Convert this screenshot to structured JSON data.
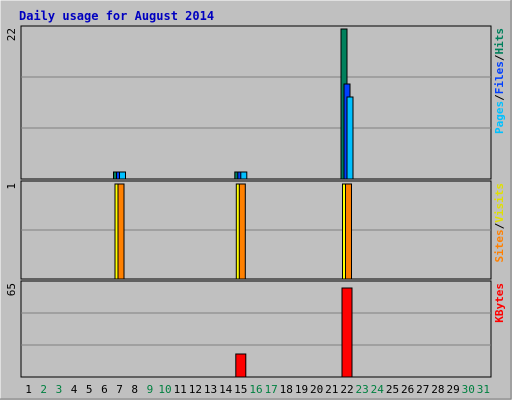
{
  "colors": {
    "frame_bg": "#c0c0c0",
    "plot_bg": "#c0c0c0",
    "grid": "#808080",
    "title": "#0000c0",
    "hits": "#00805c",
    "files": "#0040ff",
    "pages": "#00c0ff",
    "visits": "#ffff00",
    "sites": "#ff8000",
    "kbytes": "#ff0000",
    "weekday": "#000000",
    "weekend": "#008040"
  },
  "chart_data": {
    "type": "bar",
    "title": "Daily usage for August 2014",
    "days": [
      "1",
      "2",
      "3",
      "4",
      "5",
      "6",
      "7",
      "8",
      "9",
      "10",
      "11",
      "12",
      "13",
      "14",
      "15",
      "16",
      "17",
      "18",
      "19",
      "20",
      "21",
      "22",
      "23",
      "24",
      "25",
      "26",
      "27",
      "28",
      "29",
      "30",
      "31"
    ],
    "weekend_days": [
      2,
      3,
      9,
      10,
      16,
      17,
      23,
      24,
      30,
      31
    ],
    "panels": [
      {
        "scale_label": "22",
        "ymax": 22,
        "legend": [
          {
            "label": "Pages",
            "color": "#00c0ff"
          },
          {
            "label": "/",
            "color": "#000000"
          },
          {
            "label": "Files",
            "color": "#0040ff"
          },
          {
            "label": "/",
            "color": "#000000"
          },
          {
            "label": "Hits",
            "color": "#00805c"
          }
        ],
        "series": [
          {
            "name": "Hits",
            "color": "#00805c",
            "values": [
              0,
              0,
              0,
              0,
              0,
              0,
              1,
              0,
              0,
              0,
              0,
              0,
              0,
              0,
              1,
              0,
              0,
              0,
              0,
              0,
              0,
              22,
              0,
              0,
              0,
              0,
              0,
              0,
              0,
              0,
              0
            ]
          },
          {
            "name": "Files",
            "color": "#0040ff",
            "values": [
              0,
              0,
              0,
              0,
              0,
              0,
              1,
              0,
              0,
              0,
              0,
              0,
              0,
              0,
              1,
              0,
              0,
              0,
              0,
              0,
              0,
              14,
              0,
              0,
              0,
              0,
              0,
              0,
              0,
              0,
              0
            ]
          },
          {
            "name": "Pages",
            "color": "#00c0ff",
            "values": [
              0,
              0,
              0,
              0,
              0,
              0,
              1,
              0,
              0,
              0,
              0,
              0,
              0,
              0,
              1,
              0,
              0,
              0,
              0,
              0,
              0,
              12,
              0,
              0,
              0,
              0,
              0,
              0,
              0,
              0,
              0
            ]
          }
        ]
      },
      {
        "scale_label": "1",
        "ymax": 1,
        "legend": [
          {
            "label": "Sites",
            "color": "#ff8000"
          },
          {
            "label": "/",
            "color": "#000000"
          },
          {
            "label": "Visits",
            "color": "#e0e000"
          }
        ],
        "series": [
          {
            "name": "Visits",
            "color": "#ffff00",
            "values": [
              0,
              0,
              0,
              0,
              0,
              0,
              1,
              0,
              0,
              0,
              0,
              0,
              0,
              0,
              1,
              0,
              0,
              0,
              0,
              0,
              0,
              1,
              0,
              0,
              0,
              0,
              0,
              0,
              0,
              0,
              0
            ]
          },
          {
            "name": "Sites",
            "color": "#ff8000",
            "values": [
              0,
              0,
              0,
              0,
              0,
              0,
              1,
              0,
              0,
              0,
              0,
              0,
              0,
              0,
              1,
              0,
              0,
              0,
              0,
              0,
              0,
              1,
              0,
              0,
              0,
              0,
              0,
              0,
              0,
              0,
              0
            ]
          }
        ]
      },
      {
        "scale_label": "65",
        "ymax": 65,
        "legend": [
          {
            "label": "KBytes",
            "color": "#ff0000"
          }
        ],
        "series": [
          {
            "name": "KBytes",
            "color": "#ff0000",
            "values": [
              0,
              0,
              0,
              0,
              0,
              0,
              0,
              0,
              0,
              0,
              0,
              0,
              0,
              0,
              16,
              0,
              0,
              0,
              0,
              0,
              0,
              62,
              0,
              0,
              0,
              0,
              0,
              0,
              0,
              0,
              0
            ]
          }
        ]
      }
    ]
  }
}
